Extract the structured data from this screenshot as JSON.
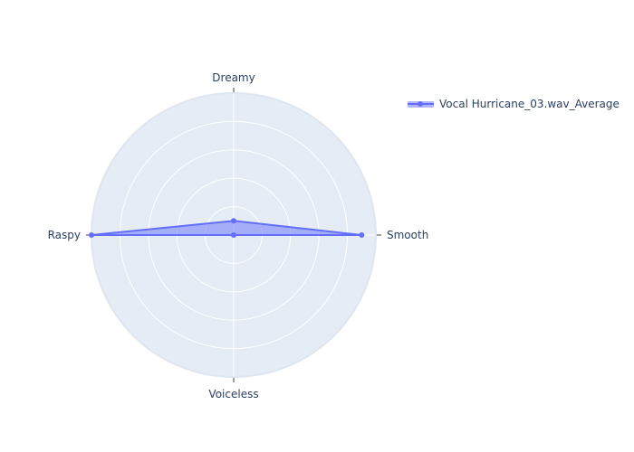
{
  "chart_data": {
    "type": "radar",
    "title": "",
    "categories": [
      "Dreamy",
      "Smooth",
      "Voiceless",
      "Raspy"
    ],
    "series": [
      {
        "name": "Vocal Hurricane_03.wav_Average",
        "values": [
          0.1,
          0.9,
          0.0,
          1.0
        ]
      }
    ],
    "radial_range": [
      0,
      1
    ],
    "radial_gridlines": 5,
    "grid": true,
    "legend_position": "top-right",
    "colors": {
      "line": "#636efa",
      "fill": "#636efa",
      "polar_bg": "#e5ecf6",
      "grid": "#ffffff",
      "text": "#2a3f5f"
    }
  }
}
